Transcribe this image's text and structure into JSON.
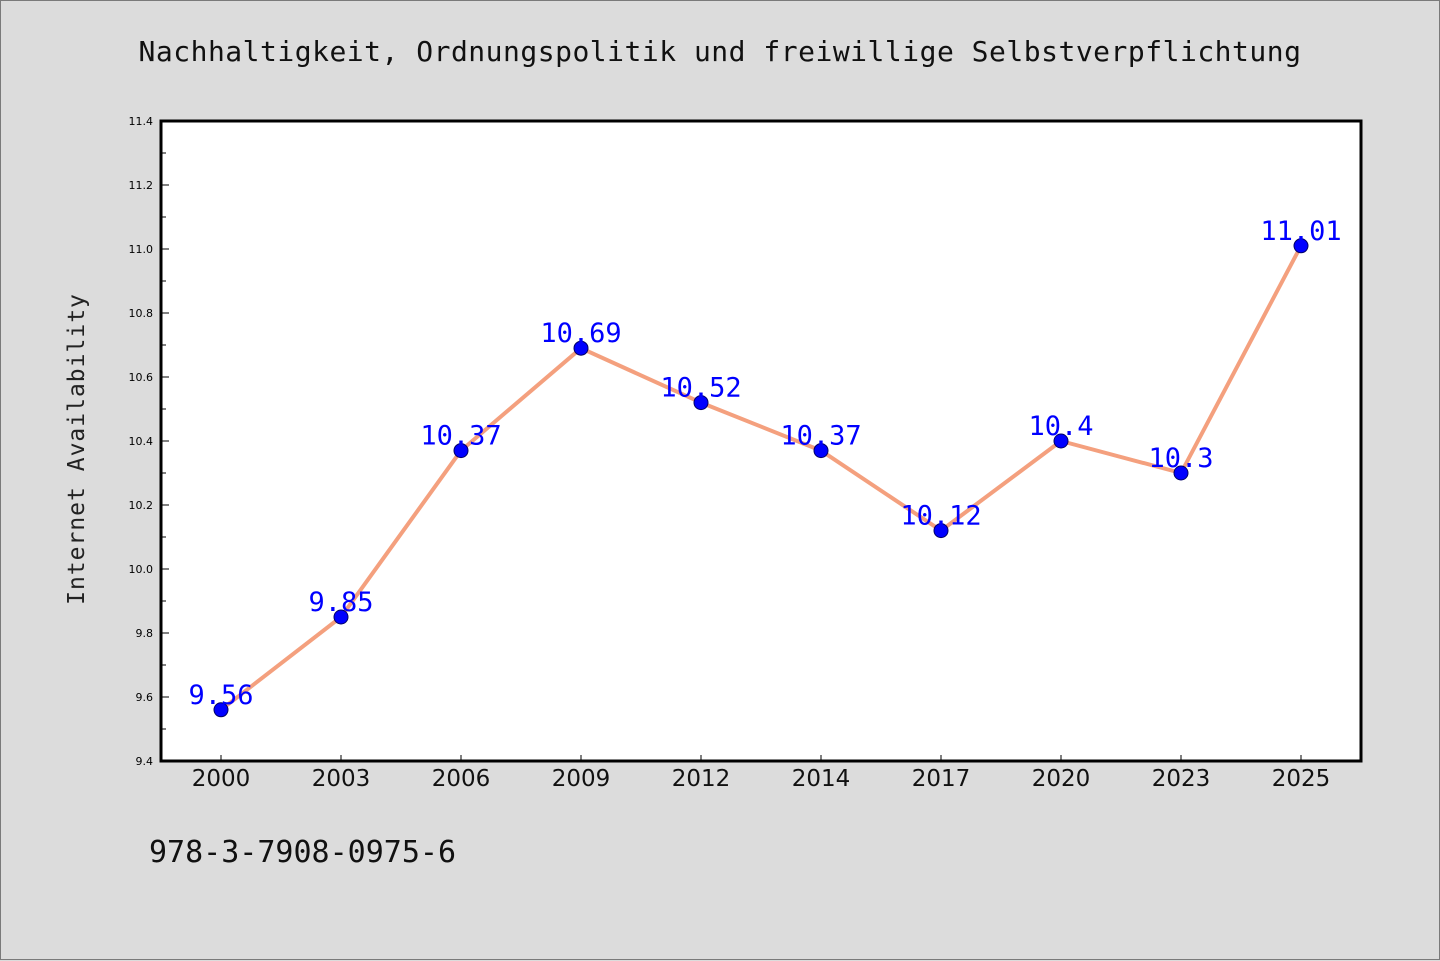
{
  "page": {
    "title": "Nachhaltigkeit, Ordnungspolitik und freiwillige Selbstverpflichtung",
    "footer_code": "978-3-7908-0975-6"
  },
  "chart_data": {
    "type": "line",
    "title": "Nachhaltigkeit, Ordnungspolitik und freiwillige Selbstverpflichtung",
    "xlabel": "",
    "ylabel": "Internet Availability",
    "categories": [
      "2000",
      "2003",
      "2006",
      "2009",
      "2012",
      "2014",
      "2017",
      "2020",
      "2023",
      "2025"
    ],
    "series": [
      {
        "values": [
          9.56,
          9.85,
          10.37,
          10.69,
          10.52,
          10.37,
          10.12,
          10.4,
          10.3,
          11.01
        ],
        "data_labels": [
          "9.56",
          "9.85",
          "10.37",
          "10.69",
          "10.52",
          "10.37",
          "10.12",
          "10.4",
          "10.3",
          "11.01"
        ],
        "line_color": "#f4a07e",
        "marker_color": "#0000ff"
      }
    ],
    "ylim": [
      9.4,
      11.4
    ],
    "yticks": [
      "9.4",
      "9.6",
      "9.8",
      "10.0",
      "10.2",
      "10.4",
      "10.6",
      "10.8",
      "11.0",
      "11.2",
      "11.4"
    ],
    "grid": false,
    "legend": "none",
    "colors": {
      "background": "#dcdcdc",
      "plot_background": "#ffffff",
      "label_text": "#0000ff"
    }
  }
}
